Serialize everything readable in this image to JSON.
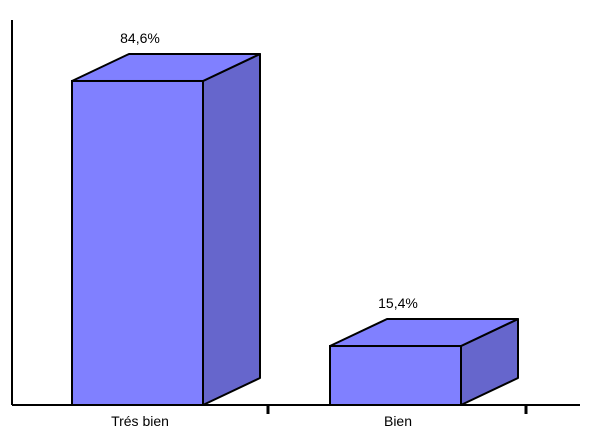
{
  "chart_data": {
    "type": "bar",
    "style": "3d",
    "categories": [
      "Trés bien",
      "Bien"
    ],
    "values": [
      84.6,
      15.4
    ],
    "value_labels": [
      "84,6%",
      "15,4%"
    ],
    "title": "",
    "xlabel": "",
    "ylabel": "",
    "ylim": [
      0,
      100
    ],
    "grid": false,
    "legend": "none"
  },
  "colors": {
    "bar_front": "#8080ff",
    "bar_top": "#8080ff",
    "bar_side": "#6666cc",
    "outline": "#000000"
  }
}
